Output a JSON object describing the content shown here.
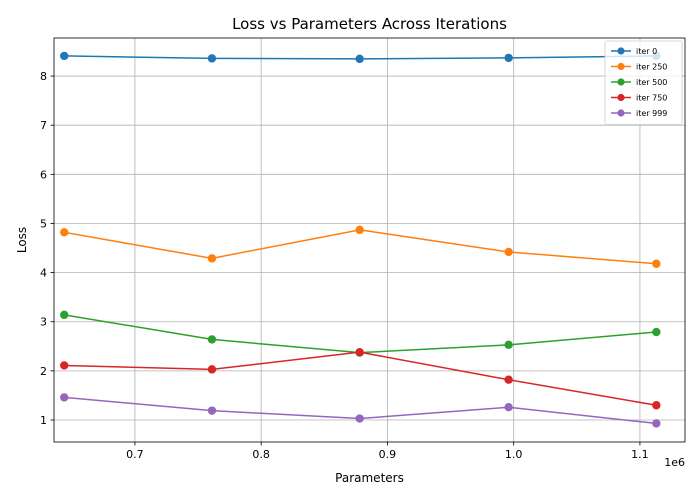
{
  "chart_data": {
    "type": "line",
    "title": "Loss vs Parameters Across Iterations",
    "xlabel": "Parameters",
    "ylabel": "Loss",
    "x_offset_label": "1e6",
    "xlim": [
      0.6359,
      1.1357
    ],
    "ylim": [
      0.552,
      8.775
    ],
    "xticks": [
      0.7,
      0.8,
      0.9,
      1.0,
      1.1
    ],
    "xtick_labels": [
      "0.7",
      "0.8",
      "0.9",
      "1.0",
      "1.1"
    ],
    "yticks": [
      1,
      2,
      3,
      4,
      5,
      6,
      7,
      8
    ],
    "ytick_labels": [
      "1",
      "2",
      "3",
      "4",
      "5",
      "6",
      "7",
      "8"
    ],
    "grid": true,
    "legend_position": "top-right",
    "x": [
      0.644,
      0.761,
      0.878,
      0.996,
      1.113
    ],
    "series": [
      {
        "name": "iter 0",
        "color": "#1f77b4",
        "values": [
          8.41,
          8.36,
          8.35,
          8.37,
          8.41
        ]
      },
      {
        "name": "iter 250",
        "color": "#ff7f0e",
        "values": [
          4.82,
          4.29,
          4.87,
          4.42,
          4.18
        ]
      },
      {
        "name": "iter 500",
        "color": "#2ca02c",
        "values": [
          3.14,
          2.64,
          2.37,
          2.53,
          2.79
        ]
      },
      {
        "name": "iter 750",
        "color": "#d62728",
        "values": [
          2.11,
          2.03,
          2.38,
          1.82,
          1.3
        ]
      },
      {
        "name": "iter 999",
        "color": "#9467bd",
        "values": [
          1.46,
          1.19,
          1.03,
          1.26,
          0.93
        ]
      }
    ]
  }
}
